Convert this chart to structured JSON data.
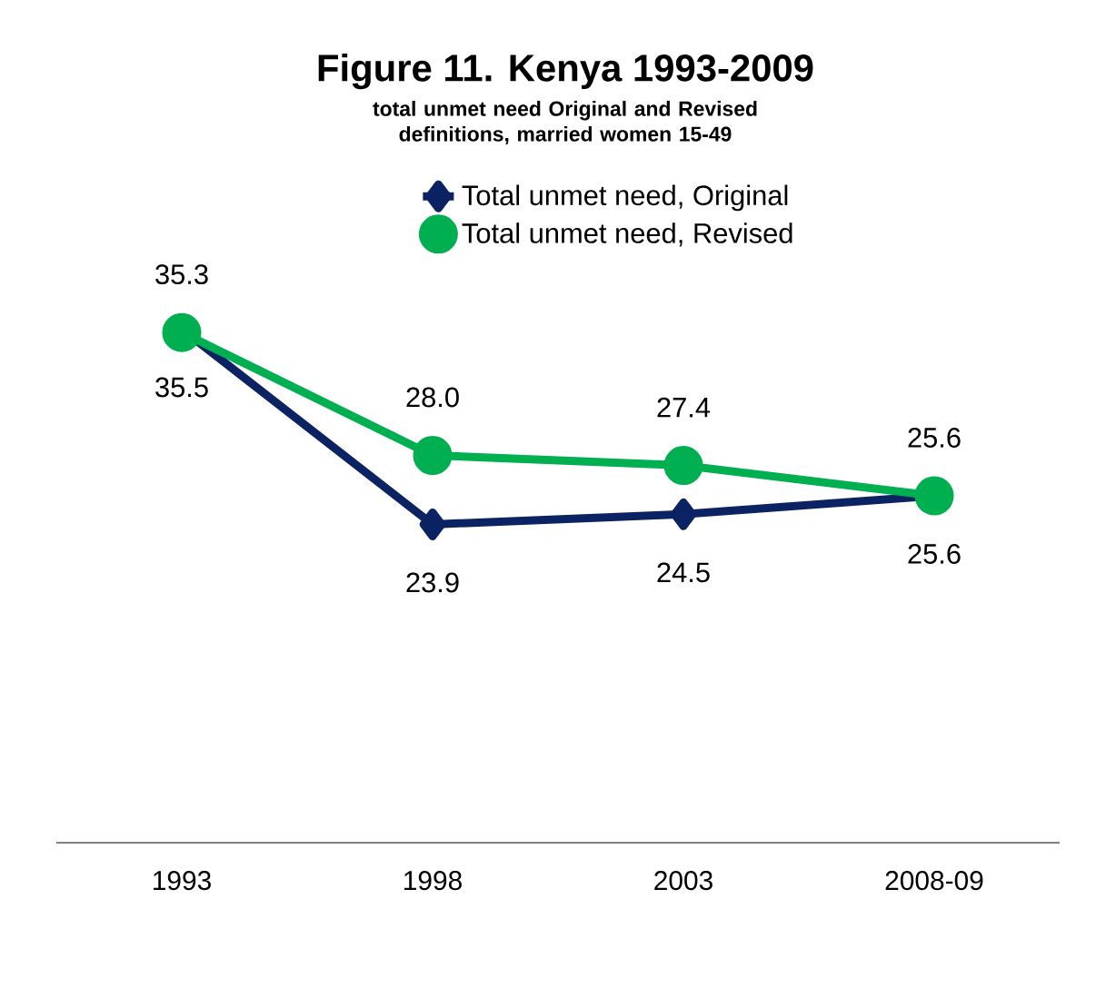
{
  "chart_data": {
    "type": "line",
    "title": "Figure 11. Kenya 1993-2009",
    "subtitle": "total unmet need Original and Revised definitions, married women 15-49",
    "categories": [
      "1993",
      "1998",
      "2003",
      "2008-09"
    ],
    "series": [
      {
        "name": "Total unmet need, Original",
        "color": "#0c2363",
        "marker": "diamond",
        "values": [
          35.5,
          23.9,
          24.5,
          25.6
        ],
        "value_labels": [
          "35.5",
          "23.9",
          "24.5",
          "25.6"
        ]
      },
      {
        "name": "Total unmet need, Revised",
        "color": "#00b050",
        "marker": "circle",
        "values": [
          35.3,
          28.0,
          27.4,
          25.6
        ],
        "value_labels": [
          "35.3",
          "28.0",
          "27.4",
          "25.6"
        ]
      }
    ],
    "legend": "top",
    "grid": false,
    "tick_labels": "x"
  }
}
